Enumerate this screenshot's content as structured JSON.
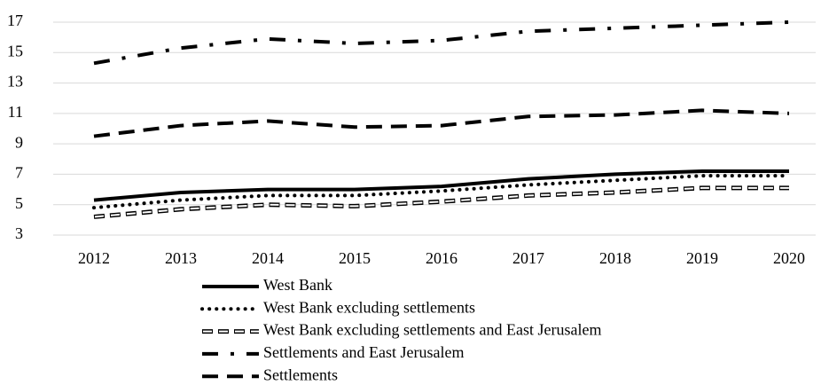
{
  "chart_data": {
    "type": "line",
    "x": [
      "2012",
      "2013",
      "2014",
      "2015",
      "2016",
      "2017",
      "2018",
      "2019",
      "2020"
    ],
    "series": [
      {
        "name": "West Bank",
        "color": "#000000",
        "style": "solid",
        "values": [
          5.3,
          5.8,
          6.0,
          6.0,
          6.2,
          6.7,
          7.0,
          7.2,
          7.2
        ]
      },
      {
        "name": "West Bank excluding settlements",
        "color": "#000000",
        "style": "dotted",
        "values": [
          4.8,
          5.3,
          5.6,
          5.6,
          5.9,
          6.3,
          6.6,
          6.9,
          6.9
        ]
      },
      {
        "name": "West Bank excluding settlements and East Jerusalem",
        "color": "#000000",
        "style": "hollow-dashed",
        "values": [
          4.2,
          4.7,
          5.0,
          4.9,
          5.2,
          5.6,
          5.8,
          6.1,
          6.1
        ]
      },
      {
        "name": "Settlements and East Jerusalem",
        "color": "#000000",
        "style": "dash-dot",
        "values": [
          14.3,
          15.3,
          15.9,
          15.6,
          15.8,
          16.4,
          16.6,
          16.8,
          17.0
        ]
      },
      {
        "name": "Settlements",
        "color": "#000000",
        "style": "dashed",
        "values": [
          9.5,
          10.2,
          10.5,
          10.1,
          10.2,
          10.8,
          10.9,
          11.2,
          11.0
        ]
      }
    ],
    "ylim": [
      3,
      17
    ],
    "yticks": [
      3,
      5,
      7,
      9,
      11,
      13,
      15,
      17
    ],
    "grid": true,
    "legend": "bottom"
  }
}
